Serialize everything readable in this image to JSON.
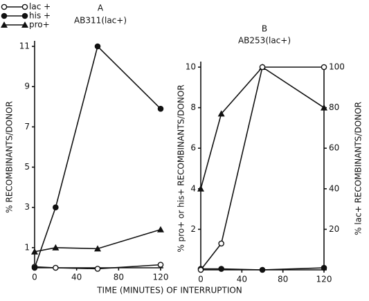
{
  "chart_data": [
    {
      "type": "line",
      "title": "A",
      "subtitle": "AB311(lac+)",
      "xlabel": "TIME (MINUTES) OF INTERRUPTION",
      "ylabel": "% RECOMBINANTS/DONOR",
      "x": [
        0,
        20,
        60,
        120
      ],
      "xlim": [
        0,
        120
      ],
      "xticks": [
        0,
        40,
        80,
        120
      ],
      "ylim": [
        0,
        11
      ],
      "yticks": [
        1,
        3,
        5,
        7,
        9,
        11
      ],
      "legend": "top-left",
      "series": [
        {
          "name": "lac +",
          "color": "#111111",
          "marker": "open-circle",
          "values": [
            0.05,
            0.0,
            -0.05,
            0.15
          ]
        },
        {
          "name": "his +",
          "color": "#111111",
          "marker": "filled-circle",
          "values": [
            0,
            3,
            11,
            7.9
          ]
        },
        {
          "name": "pro+",
          "color": "#111111",
          "marker": "triangle",
          "values": [
            0.8,
            1.0,
            0.95,
            1.9
          ]
        }
      ]
    },
    {
      "type": "line",
      "title": "B",
      "subtitle": "AB253(lac+)",
      "ylabel": "% pro+ or his+ RECOMBINANTS/DONOR",
      "y2label": "% lac+ RECOMBINANTS/DONOR",
      "x": [
        0,
        20,
        60,
        120
      ],
      "xlim": [
        0,
        120
      ],
      "xticks": [
        0,
        40,
        80,
        120
      ],
      "ylim": [
        0,
        10
      ],
      "yticks": [
        2,
        4,
        6,
        8,
        10
      ],
      "y2lim": [
        0,
        100
      ],
      "y2ticks": [
        20,
        40,
        60,
        80,
        100
      ],
      "series": [
        {
          "name": "pro+",
          "color": "#111111",
          "marker": "triangle",
          "values": [
            4,
            7.7,
            10,
            8
          ]
        },
        {
          "name": "his+",
          "color": "#111111",
          "marker": "filled-circle",
          "values": [
            0.05,
            0.05,
            0.0,
            0.1
          ]
        },
        {
          "name": "lac+",
          "color": "#111111",
          "marker": "open-circle",
          "axis": "y2",
          "values": [
            0,
            13,
            100,
            100
          ]
        }
      ]
    }
  ]
}
